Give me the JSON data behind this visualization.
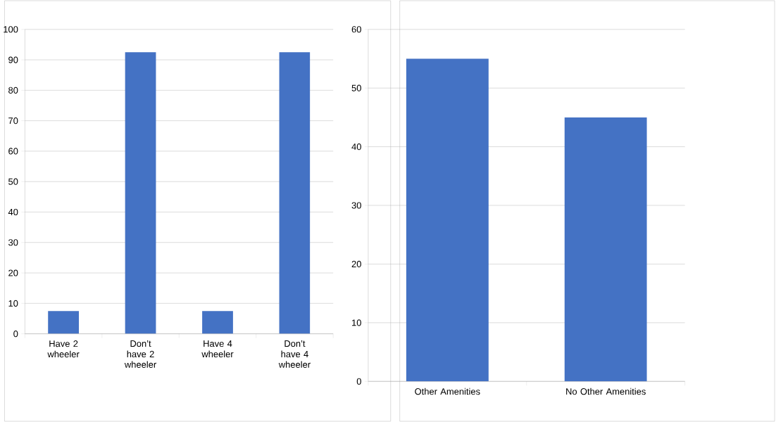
{
  "chart_data": [
    {
      "type": "bar",
      "categories": [
        "Have 2 wheeler",
        "Don’t have 2 wheeler",
        "Have 4 wheeler",
        "Don’t have 4 wheeler"
      ],
      "values": [
        7.5,
        92.5,
        7.5,
        92.5
      ],
      "color": "#4472c4",
      "ylim": [
        0,
        100
      ],
      "yticks": [
        0,
        10,
        20,
        30,
        40,
        50,
        60,
        70,
        80,
        90,
        100
      ],
      "grid": "y"
    },
    {
      "type": "bar",
      "categories": [
        "Other Amenities",
        "No Other Amenities"
      ],
      "values": [
        55,
        45
      ],
      "color": "#4472c4",
      "ylim": [
        0,
        60
      ],
      "yticks": [
        0,
        10,
        20,
        30,
        40,
        50,
        60
      ],
      "grid": "y"
    }
  ]
}
